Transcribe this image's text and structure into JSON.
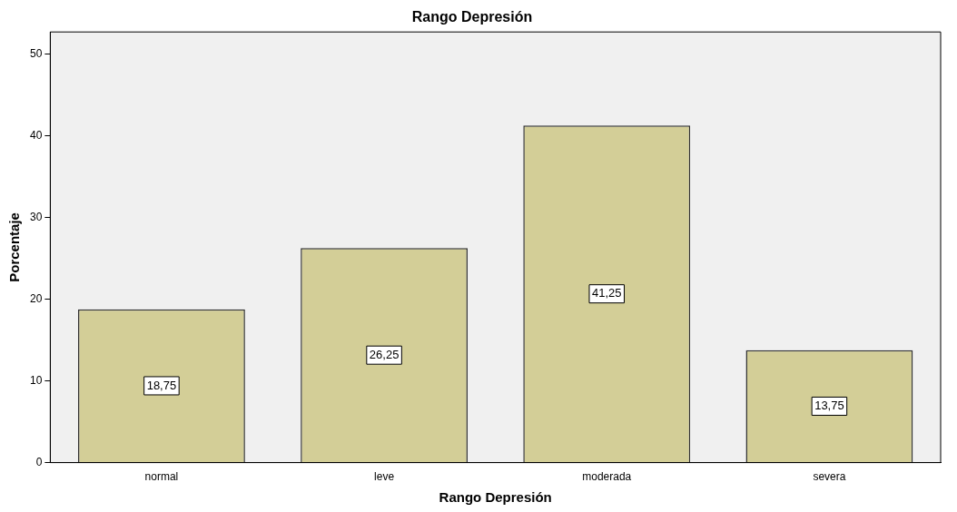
{
  "chart_data": {
    "type": "bar",
    "title": "Rango Depresión",
    "xlabel": "Rango Depresión",
    "ylabel": "Porcentaje",
    "categories": [
      "normal",
      "leve",
      "moderada",
      "severa"
    ],
    "values": [
      18.75,
      26.25,
      41.25,
      13.75
    ],
    "value_labels": [
      "18,75",
      "26,25",
      "41,25",
      "13,75"
    ],
    "color": "#d3ce97",
    "ylim": [
      0,
      52.7
    ],
    "yticks": [
      0,
      10,
      20,
      30,
      40,
      50
    ],
    "grid": false,
    "legend": false
  }
}
